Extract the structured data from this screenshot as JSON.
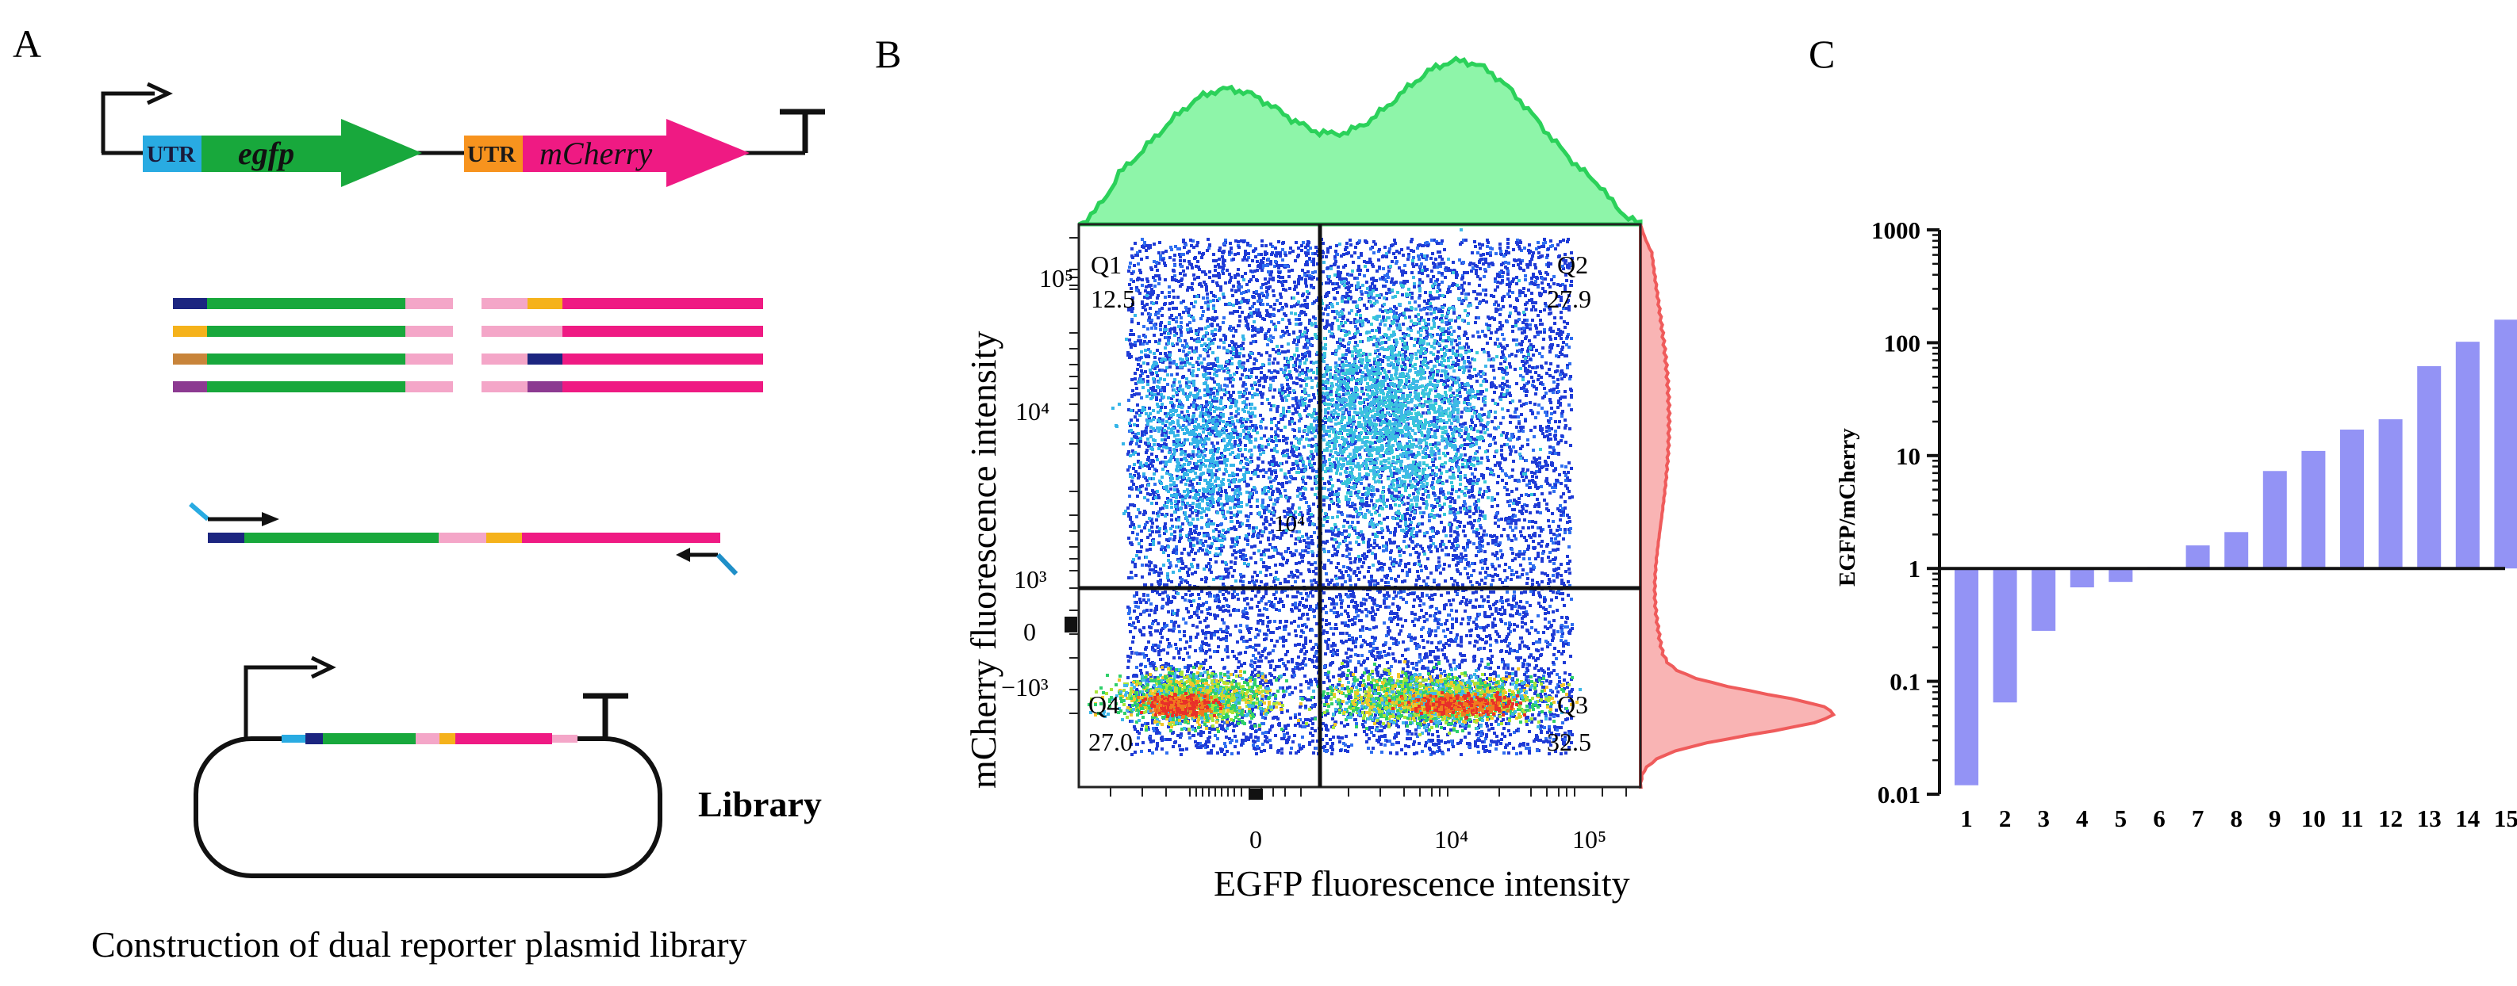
{
  "panels": {
    "a": {
      "letter": "A",
      "utr1": "UTR",
      "gene1": "egfp",
      "utr2": "UTR",
      "gene2": "mCherry",
      "library_label": "Library",
      "caption": "Construction of dual reporter plasmid library",
      "variant_utr_colors": [
        "#1c2580",
        "#f5b21b",
        "#c8843a",
        "#8c3a91"
      ]
    },
    "b": {
      "letter": "B",
      "xlabel": "EGFP fluorescence intensity",
      "ylabel": "mCherry fluorescence intensity",
      "x_ticks": [
        "0",
        "10⁴",
        "10⁵"
      ],
      "y_ticks": [
        "10⁵",
        "10⁴",
        "10³",
        "0",
        "−10³"
      ],
      "stray_label": "10⁴",
      "quadrants": [
        {
          "name": "Q1",
          "value": "12.5"
        },
        {
          "name": "Q2",
          "value": "27.9"
        },
        {
          "name": "Q3",
          "value": "32.5"
        },
        {
          "name": "Q4",
          "value": "27.0"
        }
      ]
    },
    "c": {
      "letter": "C"
    }
  },
  "colors": {
    "green": "#18a83c",
    "magenta": "#ef1a83",
    "blue_utr": "#29abe2",
    "orange_utr": "#f7931e",
    "pink": "#f4a6c8",
    "navy": "#1c2580",
    "hist_green": "#8ef5a9",
    "hist_green_edge": "#2bd15a",
    "hist_red": "#f9b4b4",
    "hist_red_edge": "#ef5b5b",
    "bar": "#9393f5"
  },
  "chart_data": {
    "type": "bar",
    "title": "",
    "xlabel": "",
    "ylabel": "EGFP/mCherry",
    "yscale": "log",
    "baseline": 1,
    "ylim": [
      0.01,
      1000
    ],
    "y_ticks": [
      "1000",
      "100",
      "10",
      "1",
      "0.1",
      "0.01"
    ],
    "categories": [
      "1",
      "2",
      "3",
      "4",
      "5",
      "6",
      "7",
      "8",
      "9",
      "10",
      "11",
      "12",
      "13",
      "14",
      "15"
    ],
    "values": [
      0.012,
      0.065,
      0.28,
      0.68,
      0.76,
      1.03,
      1.6,
      2.1,
      7.3,
      11,
      17,
      21,
      62,
      102,
      160
    ]
  }
}
